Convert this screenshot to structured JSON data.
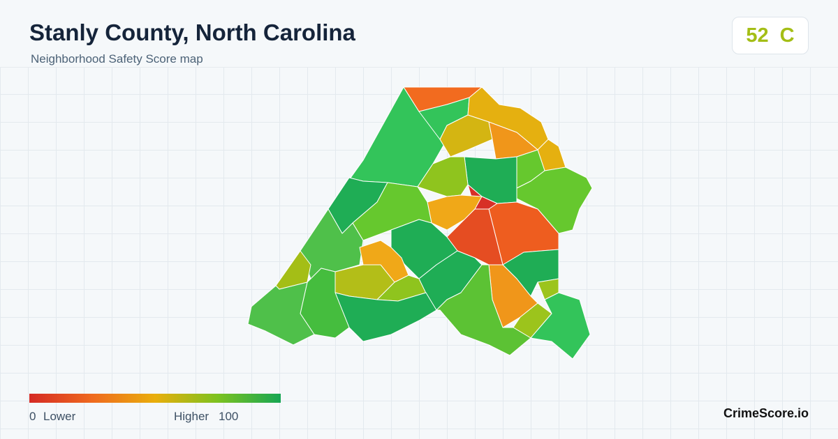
{
  "header": {
    "title": "Stanly County, North Carolina",
    "subtitle": "Neighborhood Safety Score map"
  },
  "score": {
    "value": 52,
    "grade": "C"
  },
  "legend": {
    "min": 0,
    "min_label": "Lower",
    "max_label": "Higher",
    "max": 100
  },
  "brand": "CrimeScore.io"
}
